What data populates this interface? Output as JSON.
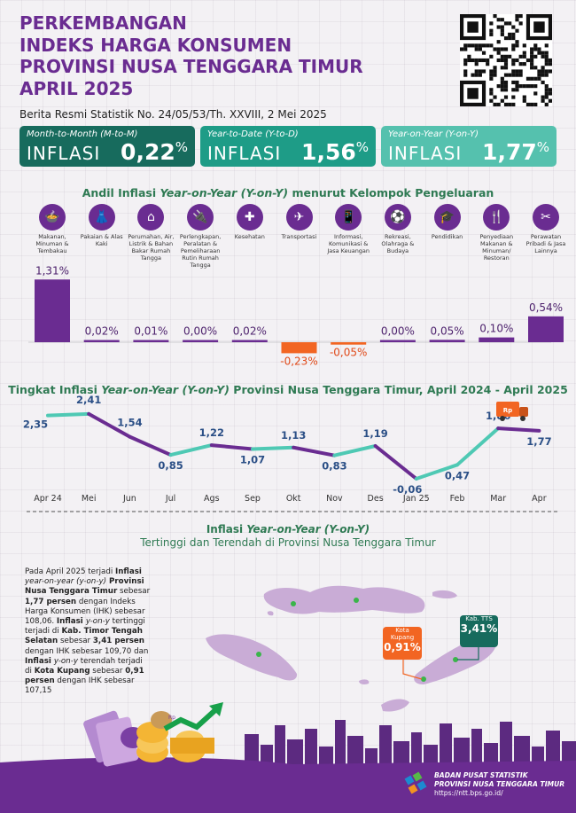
{
  "title_lines": [
    "PERKEMBANGAN",
    "INDEKS HARGA KONSUMEN",
    "PROVINSI NUSA TENGGARA TIMUR",
    "APRIL 2025"
  ],
  "subtitle": "Berita Resmi Statistik No. 24/05/53/Th. XXVIII, 2 Mei 2025",
  "summary": [
    {
      "label": "Month-to-Month (M-to-M)",
      "word": "INFLASI",
      "value": "0,22",
      "unit": "%"
    },
    {
      "label": "Year-to-Date (Y-to-D)",
      "word": "INFLASI",
      "value": "1,56",
      "unit": "%"
    },
    {
      "label": "Year-on-Year (Y-on-Y)",
      "word": "INFLASI",
      "value": "1,77",
      "unit": "%"
    }
  ],
  "andil_title_a": "Andil Inflasi ",
  "andil_title_b": "Year-on-Year (Y-on-Y)",
  "andil_title_c": " menurut Kelompok Pengeluaran",
  "andil_icons": [
    "food-icon",
    "clothing-icon",
    "house-icon",
    "appliance-icon",
    "health-icon",
    "plane-icon",
    "phone-icon",
    "sport-icon",
    "education-icon",
    "restaurant-icon",
    "tools-icon"
  ],
  "andil_labels": [
    "Makanan, Minuman & Tembakau",
    "Pakaian & Alas Kaki",
    "Perumahan, Air, Listrik & Bahan Bakar Rumah Tangga",
    "Perlengkapan, Peralatan & Pemeliharaan Rutin Rumah Tangga",
    "Kesehatan",
    "Transportasi",
    "Informasi, Komunikasi & Jasa Keuangan",
    "Rekreasi, Olahraga & Budaya",
    "Pendidikan",
    "Penyediaan Makanan & Minuman/ Restoran",
    "Perawatan Pribadi & Jasa Lainnya"
  ],
  "colors": {
    "purple": "#6a2c91",
    "green_dark": "#176b5d",
    "green_mid": "#1e9c87",
    "green_light": "#55c1ae",
    "orange": "#f26522",
    "teal_line": "#4fc9b4",
    "label_blue": "#2b4f86"
  },
  "chart_data": [
    {
      "type": "bar",
      "categories": [
        "Makanan, Minuman & Tembakau",
        "Pakaian & Alas Kaki",
        "Perumahan, Air, Listrik & Bahan Bakar Rumah Tangga",
        "Perlengkapan, Peralatan & Pemeliharaan Rutin Rumah Tangga",
        "Kesehatan",
        "Transportasi",
        "Informasi, Komunikasi & Jasa Keuangan",
        "Rekreasi, Olahraga & Budaya",
        "Pendidikan",
        "Penyediaan Makanan & Minuman/ Restoran",
        "Perawatan Pribadi & Jasa Lainnya"
      ],
      "values": [
        1.31,
        0.02,
        0.01,
        0.0,
        0.02,
        -0.23,
        -0.05,
        0.0,
        0.05,
        0.1,
        0.54
      ],
      "labels": [
        "1,31%",
        "0,02%",
        "0,01%",
        "0,00%",
        "0,02%",
        "-0,23%",
        "-0,05%",
        "0,00%",
        "0,05%",
        "0,10%",
        "0,54%"
      ],
      "title": "Andil Inflasi Year-on-Year (Y-on-Y) menurut Kelompok Pengeluaran"
    },
    {
      "type": "line",
      "title": "Tingkat Inflasi Year-on-Year (Y-on-Y) Provinsi Nusa Tenggara Timur, April 2024 - April 2025",
      "x": [
        "Apr 24",
        "Mei",
        "Jun",
        "Jul",
        "Ags",
        "Sep",
        "Okt",
        "Nov",
        "Des",
        "Jan 25",
        "Feb",
        "Mar",
        "Apr"
      ],
      "values": [
        2.35,
        2.41,
        1.54,
        0.85,
        1.22,
        1.07,
        1.13,
        0.83,
        1.19,
        -0.06,
        0.47,
        1.86,
        1.77
      ],
      "labels": [
        "2,35",
        "2,41",
        "1,54",
        "0,85",
        "1,22",
        "1,07",
        "1,13",
        "0,83",
        "1,19",
        "-0,06",
        "0,47",
        "1,86",
        "1,77"
      ]
    }
  ],
  "line_title_a": "Tingkat Inflasi ",
  "line_title_b": "Year-on-Year (Y-on-Y)",
  "line_title_c": " Provinsi Nusa Tenggara Timur, April 2024 - April 2025",
  "map_title_a": "Inflasi ",
  "map_title_b": "Year-on-Year (Y-on-Y)",
  "map_title_2": "Tertinggi dan Terendah di Provinsi Nusa Tenggara Timur",
  "para": {
    "p1": "Pada April 2025 terjadi ",
    "p2": "Inflasi ",
    "p3": "year-on-year (y-on-y)",
    "p4": " Provinsi Nusa Tenggara Timur",
    "p5": " sebesar ",
    "p6": "1,77 persen",
    "p7": " dengan Indeks Harga Konsumen (IHK) sebesar 108,06. ",
    "p8": "Inflasi ",
    "p9": "y-on-y",
    "p10": " tertinggi terjadi di ",
    "p11": "Kab. Timor Tengah Selatan",
    "p12": " sebesar ",
    "p13": "3,41 persen",
    "p14": " dengan IHK sebesar 109,70 dan ",
    "p15": "Inflasi ",
    "p16": "y-on-y",
    "p17": " terendah terjadi di ",
    "p18": "Kota Kupang",
    "p19": " sebesar ",
    "p20": "0,91 persen",
    "p21": " dengan IHK sebesar 107,15"
  },
  "callout_kupang": {
    "name": "Kota Kupang",
    "value": "0,91%"
  },
  "callout_tts": {
    "name": "Kab. TTS",
    "value": "3,41%"
  },
  "truck_label": "Rp",
  "coin_label": "Rp",
  "footer": {
    "org1": "BADAN PUSAT STATISTIK",
    "org2": "PROVINSI NUSA TENGGARA TIMUR",
    "url": "https://ntt.bps.go.id/"
  }
}
